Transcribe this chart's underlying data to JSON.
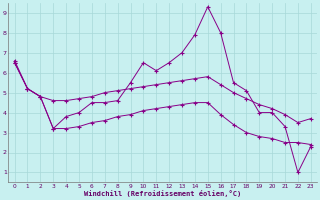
{
  "background_color": "#c8f0f0",
  "grid_color": "#a8d8d8",
  "line_color": "#880088",
  "xlabel": "Windchill (Refroidissement éolien,°C)",
  "xlim": [
    -0.5,
    23.5
  ],
  "ylim": [
    0.5,
    9.5
  ],
  "yticks": [
    1,
    2,
    3,
    4,
    5,
    6,
    7,
    8,
    9
  ],
  "xticks": [
    0,
    1,
    2,
    3,
    4,
    5,
    6,
    7,
    8,
    9,
    10,
    11,
    12,
    13,
    14,
    15,
    16,
    17,
    18,
    19,
    20,
    21,
    22,
    23
  ],
  "line1_x": [
    0,
    1,
    2,
    3,
    4,
    5,
    6,
    7,
    8,
    9,
    10,
    11,
    12,
    13,
    14,
    15,
    16,
    17,
    18,
    19,
    20,
    21,
    22,
    23
  ],
  "line1_y": [
    6.6,
    5.2,
    4.8,
    3.2,
    3.8,
    4.0,
    4.5,
    4.5,
    4.6,
    5.5,
    6.5,
    6.1,
    6.5,
    7.0,
    7.9,
    9.3,
    8.0,
    5.5,
    5.1,
    4.0,
    4.0,
    3.3,
    1.0,
    2.3
  ],
  "line2_x": [
    0,
    1,
    2,
    3,
    4,
    5,
    6,
    7,
    8,
    9,
    10,
    11,
    12,
    13,
    14,
    15,
    16,
    17,
    18,
    19,
    20,
    21,
    22,
    23
  ],
  "line2_y": [
    6.5,
    5.2,
    4.8,
    4.6,
    4.6,
    4.7,
    4.8,
    5.0,
    5.1,
    5.2,
    5.3,
    5.4,
    5.5,
    5.6,
    5.7,
    5.8,
    5.4,
    5.0,
    4.7,
    4.4,
    4.2,
    3.9,
    3.5,
    3.7
  ],
  "line3_x": [
    0,
    1,
    2,
    3,
    4,
    5,
    6,
    7,
    8,
    9,
    10,
    11,
    12,
    13,
    14,
    15,
    16,
    17,
    18,
    19,
    20,
    21,
    22,
    23
  ],
  "line3_y": [
    6.5,
    5.2,
    4.8,
    3.2,
    3.2,
    3.3,
    3.5,
    3.6,
    3.8,
    3.9,
    4.1,
    4.2,
    4.3,
    4.4,
    4.5,
    4.5,
    3.9,
    3.4,
    3.0,
    2.8,
    2.7,
    2.5,
    2.5,
    2.4
  ]
}
